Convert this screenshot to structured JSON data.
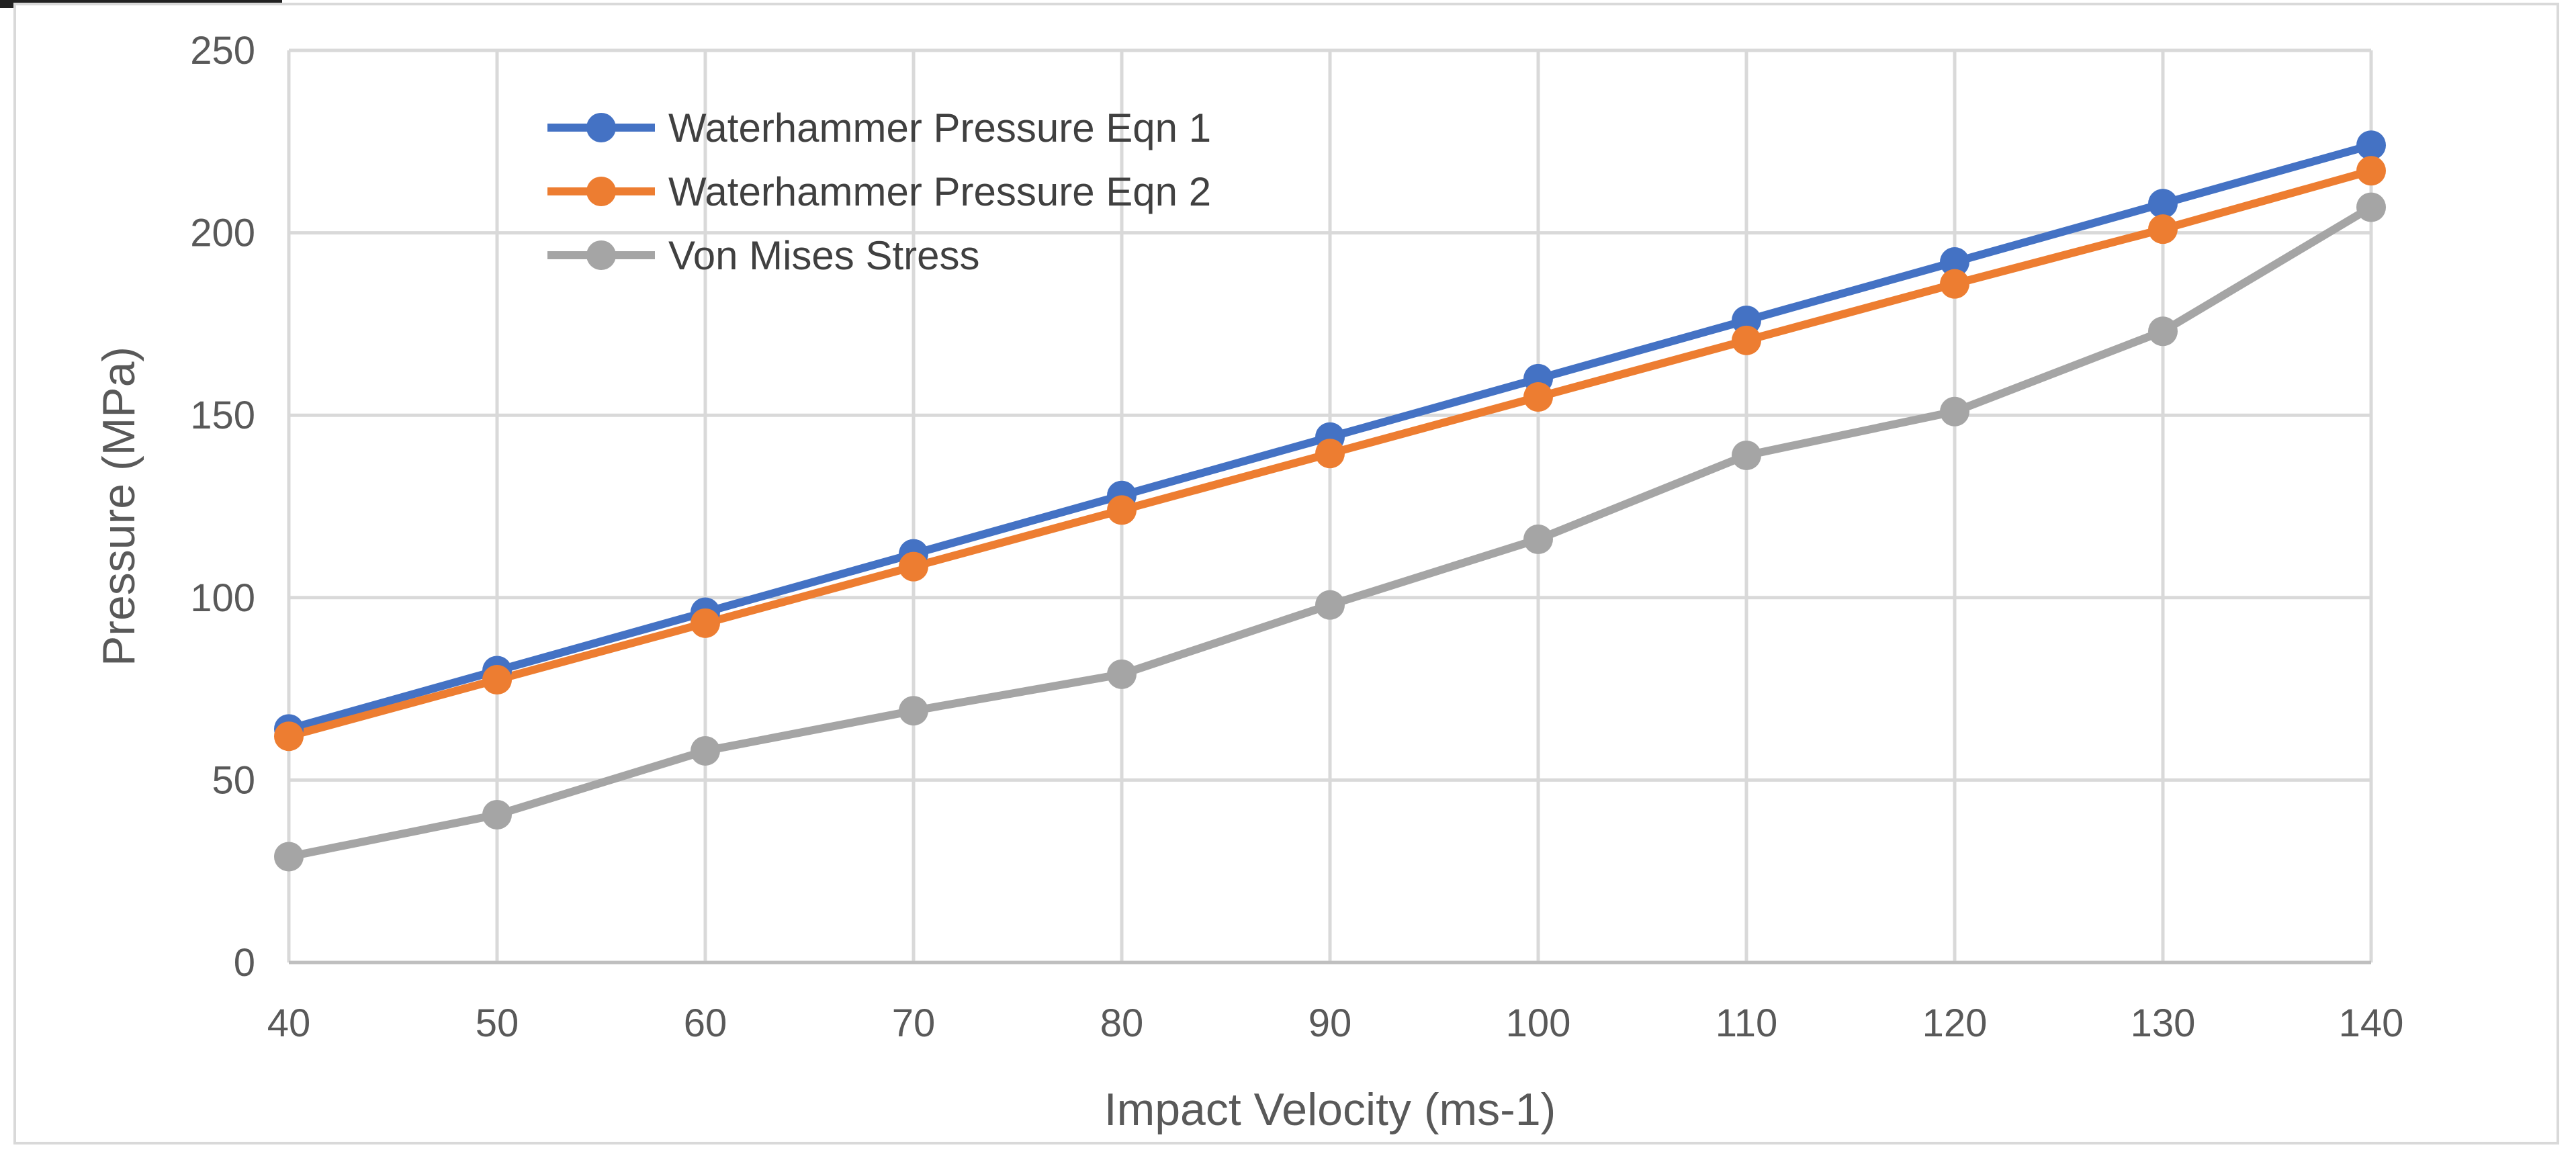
{
  "chart_data": {
    "type": "line",
    "title": "",
    "xlabel": "Impact Velocity (ms-1)",
    "ylabel": "Pressure (MPa)",
    "x": [
      40,
      50,
      60,
      70,
      80,
      90,
      100,
      110,
      120,
      130,
      140
    ],
    "xlim": [
      40,
      140
    ],
    "ylim": [
      0,
      250
    ],
    "y_ticks": [
      0,
      50,
      100,
      150,
      200,
      250
    ],
    "grid": true,
    "legend_position": "top-left",
    "series": [
      {
        "name": "Waterhammer Pressure Eqn 1",
        "color": "#4472c4",
        "values": [
          64,
          80,
          96,
          112,
          128,
          144,
          160,
          176,
          192,
          208,
          224
        ]
      },
      {
        "name": "Waterhammer Pressure Eqn 2",
        "color": "#ed7d31",
        "values": [
          62,
          77.5,
          93,
          108.5,
          124,
          139.5,
          155,
          170.5,
          186,
          201,
          217
        ]
      },
      {
        "name": "Von Mises Stress",
        "color": "#a5a5a5",
        "values": [
          29,
          40.5,
          58,
          69,
          79,
          98,
          116,
          139,
          151,
          173,
          207
        ]
      }
    ]
  }
}
